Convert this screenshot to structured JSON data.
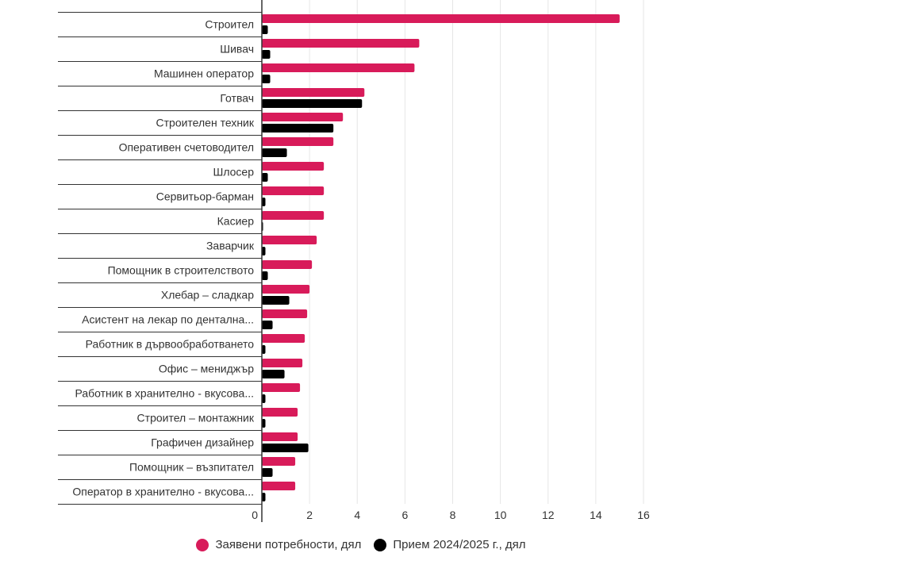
{
  "chart_data": {
    "type": "bar",
    "orientation": "horizontal",
    "categories": [
      "Строител",
      "Шивач",
      "Машинен оператор",
      "Готвач",
      "Строителен техник",
      "Оперативен счетоводител",
      "Шлосер",
      "Сервитьор-барман",
      "Касиер",
      "Заварчик",
      "Помощник в строителството",
      "Хлебар – сладкар",
      "Асистент на лекар по дентална...",
      "Работник в дървообработването",
      "Офис – мениджър",
      "Работник в хранително - вкусова...",
      "Строител – монтажник",
      "Графичен дизайнер",
      "Помощник – възпитател",
      "Оператор в хранително - вкусова..."
    ],
    "series": [
      {
        "name": "Заявени потребности, дял",
        "color": "#d81b5a",
        "values": [
          15.0,
          6.6,
          6.4,
          4.3,
          3.4,
          3.0,
          2.6,
          2.6,
          2.6,
          2.3,
          2.1,
          2.0,
          1.9,
          1.8,
          1.7,
          1.6,
          1.5,
          1.5,
          1.4,
          1.4
        ]
      },
      {
        "name": "Прием 2024/2025 г., дял",
        "color": "#000000",
        "values": [
          0.25,
          0.35,
          0.35,
          4.2,
          3.0,
          1.05,
          0.25,
          0.15,
          0.05,
          0.15,
          0.25,
          1.15,
          0.45,
          0.15,
          0.95,
          0.15,
          0.15,
          1.95,
          0.45,
          0.15
        ]
      }
    ],
    "x_ticks": [
      0,
      2,
      4,
      6,
      8,
      10,
      12,
      14,
      16
    ],
    "xlim": [
      0,
      16
    ],
    "grid": true,
    "legend_position": "bottom-center",
    "title": "",
    "xlabel": "",
    "ylabel": ""
  }
}
